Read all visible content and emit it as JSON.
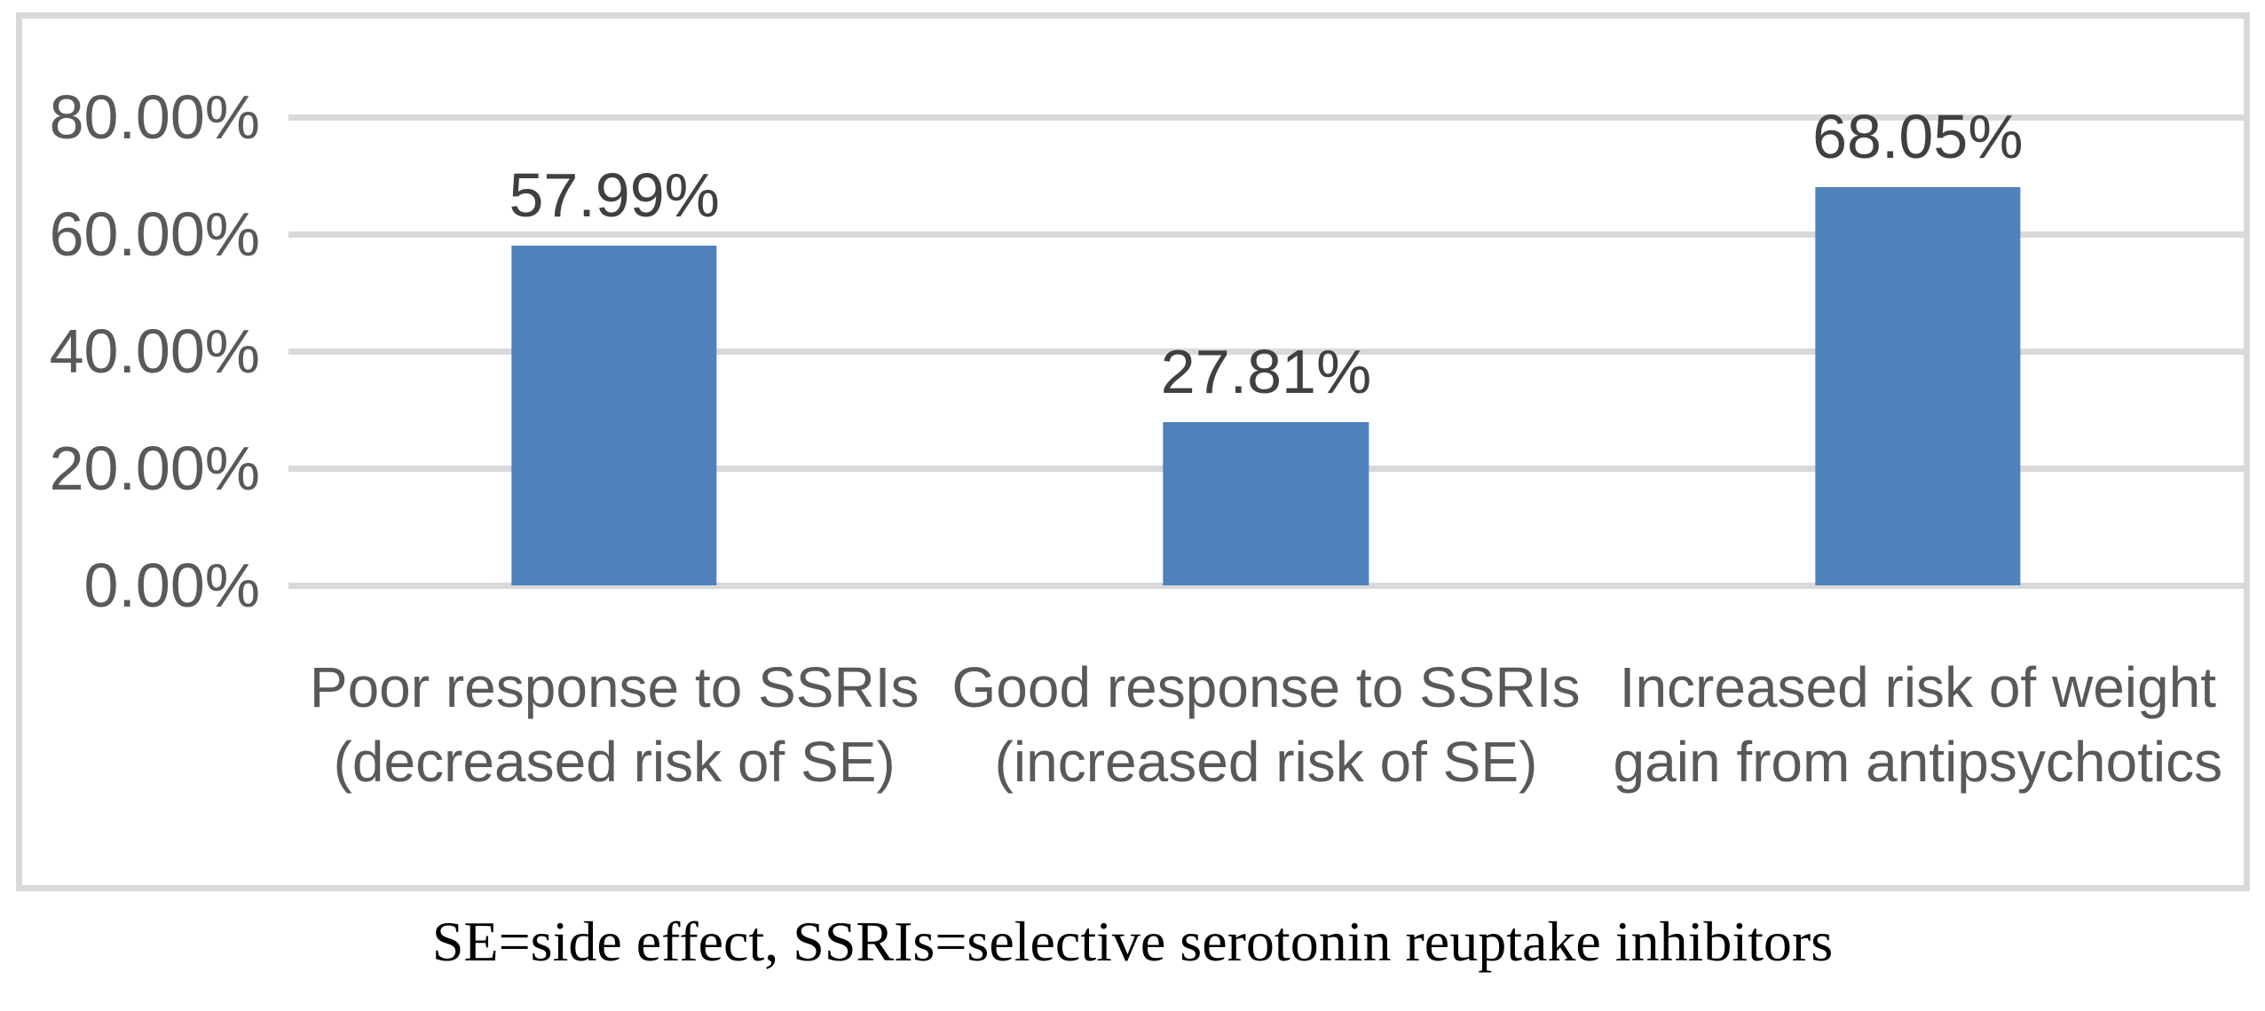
{
  "figure": {
    "caption": "SE=side effect, SSRIs=selective serotonin reuptake inhibitors"
  },
  "chart_data": {
    "type": "bar",
    "title": "",
    "categories": [
      {
        "line1": "Poor response to SSRIs",
        "line2": "(decreased risk of SE)"
      },
      {
        "line1": "Good response to SSRIs",
        "line2": "(increased risk of SE)"
      },
      {
        "line1": "Increased risk of weight",
        "line2": "gain from antipsychotics"
      }
    ],
    "values": [
      57.99,
      27.81,
      68.05
    ],
    "value_labels": [
      "57.99%",
      "27.81%",
      "68.05%"
    ],
    "y_ticks": [
      "80.00%",
      "60.00%",
      "40.00%",
      "20.00%",
      "0.00%"
    ],
    "ylim": [
      0,
      80
    ],
    "grid": true,
    "legend": "none",
    "bar_color": "#4F81BD",
    "gridline_color": "#D9D9D9",
    "axis_label_color": "#595959",
    "value_label_color": "#404040"
  }
}
